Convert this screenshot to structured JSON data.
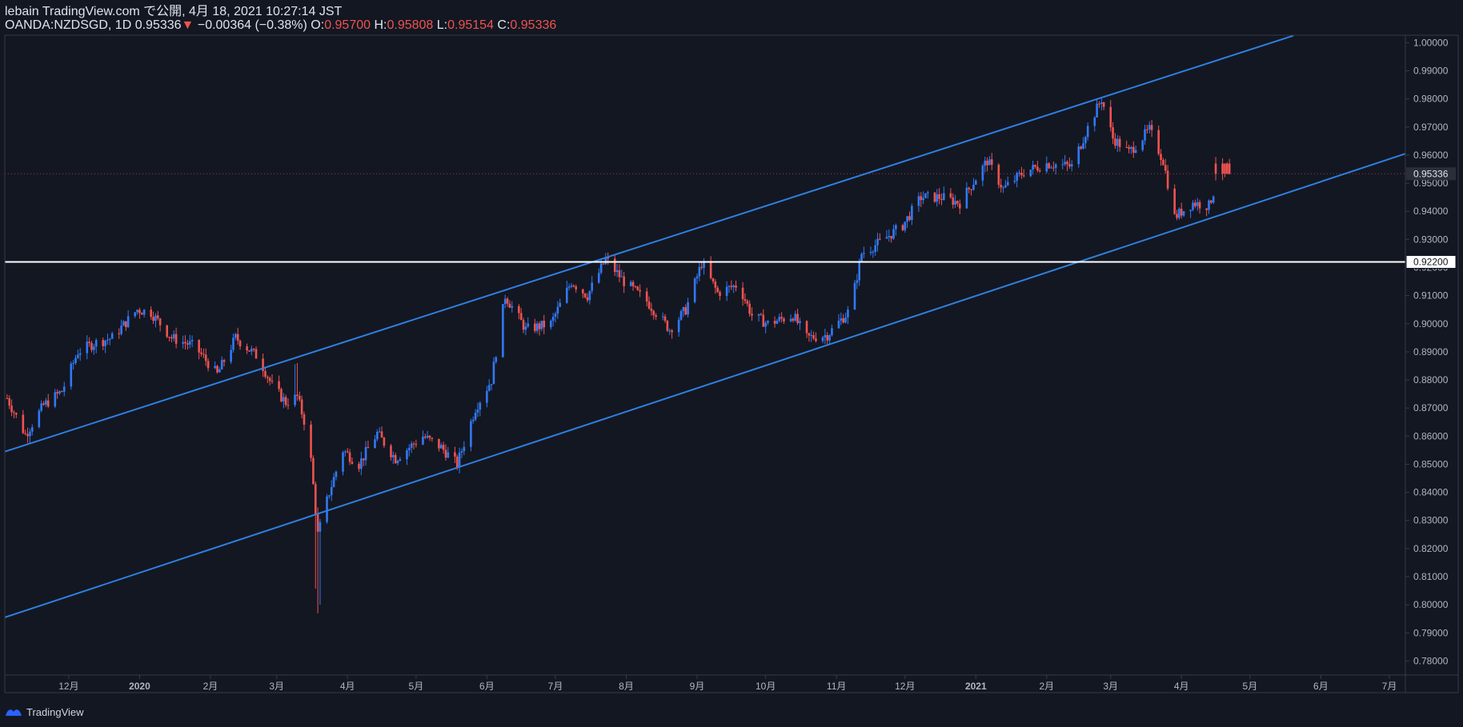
{
  "header": {
    "publish_line": "lebain TradingView.com で公開, 4月 18, 2021 10:27:14 JST",
    "symbol_interval": "OANDA:NZDSGD, 1D",
    "last_price": "0.95336",
    "change_arrow": "▼",
    "change": "−0.00364 (−0.38%)",
    "o_label": "O:",
    "o_value": "0.95700",
    "h_label": "H:",
    "h_value": "0.95808",
    "l_label": "L:",
    "l_value": "0.95154",
    "c_label": "C:",
    "c_value": "0.95336"
  },
  "footer": {
    "brand": "TradingView",
    "logo_icon": "tradingview-logo-icon"
  },
  "colors": {
    "background": "#131722",
    "up": "#2962ff",
    "up_candle": "#3179f5",
    "down": "#ef5350",
    "trendline": "#2f7fe0",
    "hline": "#ffffff",
    "axis_text": "#b2b5be",
    "border": "#363a45"
  },
  "chart_data": {
    "type": "candlestick",
    "symbol": "OANDA:NZDSGD",
    "interval": "1D",
    "ylim": [
      0.775,
      1.00267
    ],
    "x_range": [
      "2019-11-03",
      "2021-07-08"
    ],
    "y_ticks": [
      "1.00000",
      "0.99000",
      "0.98000",
      "0.97000",
      "0.96000",
      "0.95000",
      "0.94000",
      "0.93000",
      "0.92000",
      "0.91000",
      "0.90000",
      "0.89000",
      "0.88000",
      "0.87000",
      "0.86000",
      "0.85000",
      "0.84000",
      "0.83000",
      "0.82000",
      "0.81000",
      "0.80000",
      "0.79000",
      "0.78000"
    ],
    "x_ticks": [
      {
        "label": "12月",
        "date": "2019-12-01"
      },
      {
        "label": "2020",
        "date": "2020-01-01"
      },
      {
        "label": "2月",
        "date": "2020-02-01"
      },
      {
        "label": "3月",
        "date": "2020-03-01"
      },
      {
        "label": "4月",
        "date": "2020-04-01"
      },
      {
        "label": "5月",
        "date": "2020-05-01"
      },
      {
        "label": "6月",
        "date": "2020-06-01"
      },
      {
        "label": "7月",
        "date": "2020-07-01"
      },
      {
        "label": "8月",
        "date": "2020-08-01"
      },
      {
        "label": "9月",
        "date": "2020-09-01"
      },
      {
        "label": "10月",
        "date": "2020-10-01"
      },
      {
        "label": "11月",
        "date": "2020-11-01"
      },
      {
        "label": "12月",
        "date": "2020-12-01"
      },
      {
        "label": "2021",
        "date": "2021-01-01"
      },
      {
        "label": "2月",
        "date": "2021-02-01"
      },
      {
        "label": "3月",
        "date": "2021-03-01"
      },
      {
        "label": "4月",
        "date": "2021-04-01"
      },
      {
        "label": "5月",
        "date": "2021-05-01"
      },
      {
        "label": "6月",
        "date": "2021-06-01"
      },
      {
        "label": "7月",
        "date": "2021-07-01"
      }
    ],
    "price_labels": [
      {
        "name": "last-price-label",
        "text": "0.95336",
        "value": 0.95336
      },
      {
        "name": "horizontal-line-label",
        "text": "0.92200",
        "value": 0.922
      }
    ],
    "horizontal_line": {
      "value": 0.922
    },
    "trendlines": [
      {
        "name": "upper-channel-line",
        "from": [
          "2019-11-03",
          0.8545
        ],
        "to": [
          "2021-05-20",
          1.0025
        ]
      },
      {
        "name": "lower-channel-line",
        "from": [
          "2019-11-03",
          0.7955
        ],
        "to": [
          "2021-07-08",
          0.9605
        ]
      }
    ],
    "path_points": [
      [
        "2019-11-04",
        0.8735
      ],
      [
        "2019-11-12",
        0.8605
      ],
      [
        "2019-11-20",
        0.871
      ],
      [
        "2019-11-28",
        0.876
      ],
      [
        "2019-12-05",
        0.89
      ],
      [
        "2019-12-12",
        0.893
      ],
      [
        "2019-12-20",
        0.895
      ],
      [
        "2019-12-31",
        0.905
      ],
      [
        "2020-01-06",
        0.904
      ],
      [
        "2020-01-15",
        0.895
      ],
      [
        "2020-01-25",
        0.892
      ],
      [
        "2020-02-04",
        0.882
      ],
      [
        "2020-02-12",
        0.895
      ],
      [
        "2020-02-22",
        0.888
      ],
      [
        "2020-02-28",
        0.878
      ],
      [
        "2020-03-05",
        0.872
      ],
      [
        "2020-03-10",
        0.874
      ],
      [
        "2020-03-15",
        0.86
      ],
      [
        "2020-03-19",
        0.825
      ],
      [
        "2020-03-24",
        0.84
      ],
      [
        "2020-03-30",
        0.855
      ],
      [
        "2020-04-06",
        0.85
      ],
      [
        "2020-04-14",
        0.861
      ],
      [
        "2020-04-22",
        0.852
      ],
      [
        "2020-05-04",
        0.86
      ],
      [
        "2020-05-12",
        0.856
      ],
      [
        "2020-05-19",
        0.85
      ],
      [
        "2020-05-27",
        0.87
      ],
      [
        "2020-06-03",
        0.88
      ],
      [
        "2020-06-09",
        0.91
      ],
      [
        "2020-06-18",
        0.898
      ],
      [
        "2020-06-29",
        0.9
      ],
      [
        "2020-07-08",
        0.915
      ],
      [
        "2020-07-15",
        0.91
      ],
      [
        "2020-07-23",
        0.923
      ],
      [
        "2020-07-31",
        0.915
      ],
      [
        "2020-08-10",
        0.908
      ],
      [
        "2020-08-20",
        0.898
      ],
      [
        "2020-08-27",
        0.905
      ],
      [
        "2020-09-03",
        0.9215
      ],
      [
        "2020-09-10",
        0.911
      ],
      [
        "2020-09-19",
        0.914
      ],
      [
        "2020-09-25",
        0.903
      ],
      [
        "2020-10-02",
        0.9
      ],
      [
        "2020-10-13",
        0.903
      ],
      [
        "2020-10-19",
        0.895
      ],
      [
        "2020-10-28",
        0.896
      ],
      [
        "2020-11-07",
        0.905
      ],
      [
        "2020-11-12",
        0.925
      ],
      [
        "2020-11-20",
        0.929
      ],
      [
        "2020-11-30",
        0.935
      ],
      [
        "2020-12-08",
        0.945
      ],
      [
        "2020-12-17",
        0.945
      ],
      [
        "2020-12-25",
        0.943
      ],
      [
        "2021-01-06",
        0.958
      ],
      [
        "2021-01-13",
        0.948
      ],
      [
        "2021-01-22",
        0.954
      ],
      [
        "2021-02-01",
        0.957
      ],
      [
        "2021-02-12",
        0.956
      ],
      [
        "2021-02-18",
        0.968
      ],
      [
        "2021-02-25",
        0.98
      ],
      [
        "2021-03-02",
        0.966
      ],
      [
        "2021-03-09",
        0.961
      ],
      [
        "2021-03-18",
        0.969
      ],
      [
        "2021-03-24",
        0.958
      ],
      [
        "2021-03-29",
        0.938
      ],
      [
        "2021-04-06",
        0.943
      ],
      [
        "2021-04-13",
        0.942
      ],
      [
        "2021-04-19",
        0.956
      ],
      [
        "2021-04-22",
        0.95336
      ]
    ]
  }
}
